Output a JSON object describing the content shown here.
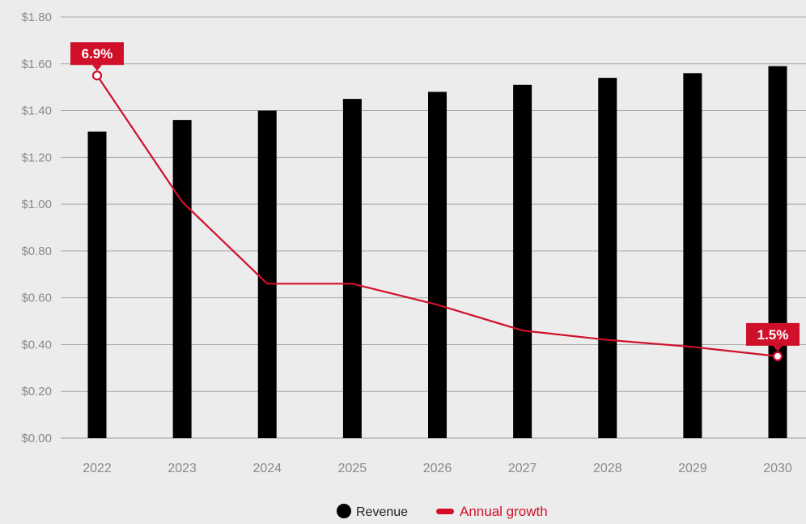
{
  "chart_data": {
    "type": "bar",
    "categories": [
      "2022",
      "2023",
      "2024",
      "2025",
      "2026",
      "2027",
      "2028",
      "2029",
      "2030"
    ],
    "ylim": [
      0,
      1.8
    ],
    "y_ticks": [
      "$0.00",
      "$0.20",
      "$0.40",
      "$0.60",
      "$0.80",
      "$1.00",
      "$1.20",
      "$1.40",
      "$1.60",
      "$1.80"
    ],
    "y_tick_values": [
      0,
      0.2,
      0.4,
      0.6,
      0.8,
      1.0,
      1.2,
      1.4,
      1.6,
      1.8
    ],
    "grid": "horizontal",
    "legend_position": "bottom-center",
    "series": [
      {
        "name": "Revenue",
        "kind": "bar",
        "color": "#000000",
        "values": [
          1.31,
          1.36,
          1.4,
          1.45,
          1.48,
          1.51,
          1.54,
          1.56,
          1.59
        ]
      },
      {
        "name": "Annual growth",
        "kind": "line",
        "color": "#d0102a",
        "values": [
          1.55,
          1.01,
          0.66,
          0.66,
          0.57,
          0.46,
          0.42,
          0.39,
          0.35
        ]
      }
    ],
    "annotations": [
      {
        "category": "2022",
        "series": "Annual growth",
        "text": "6.9%"
      },
      {
        "category": "2030",
        "series": "Annual growth",
        "text": "1.5%"
      }
    ]
  }
}
